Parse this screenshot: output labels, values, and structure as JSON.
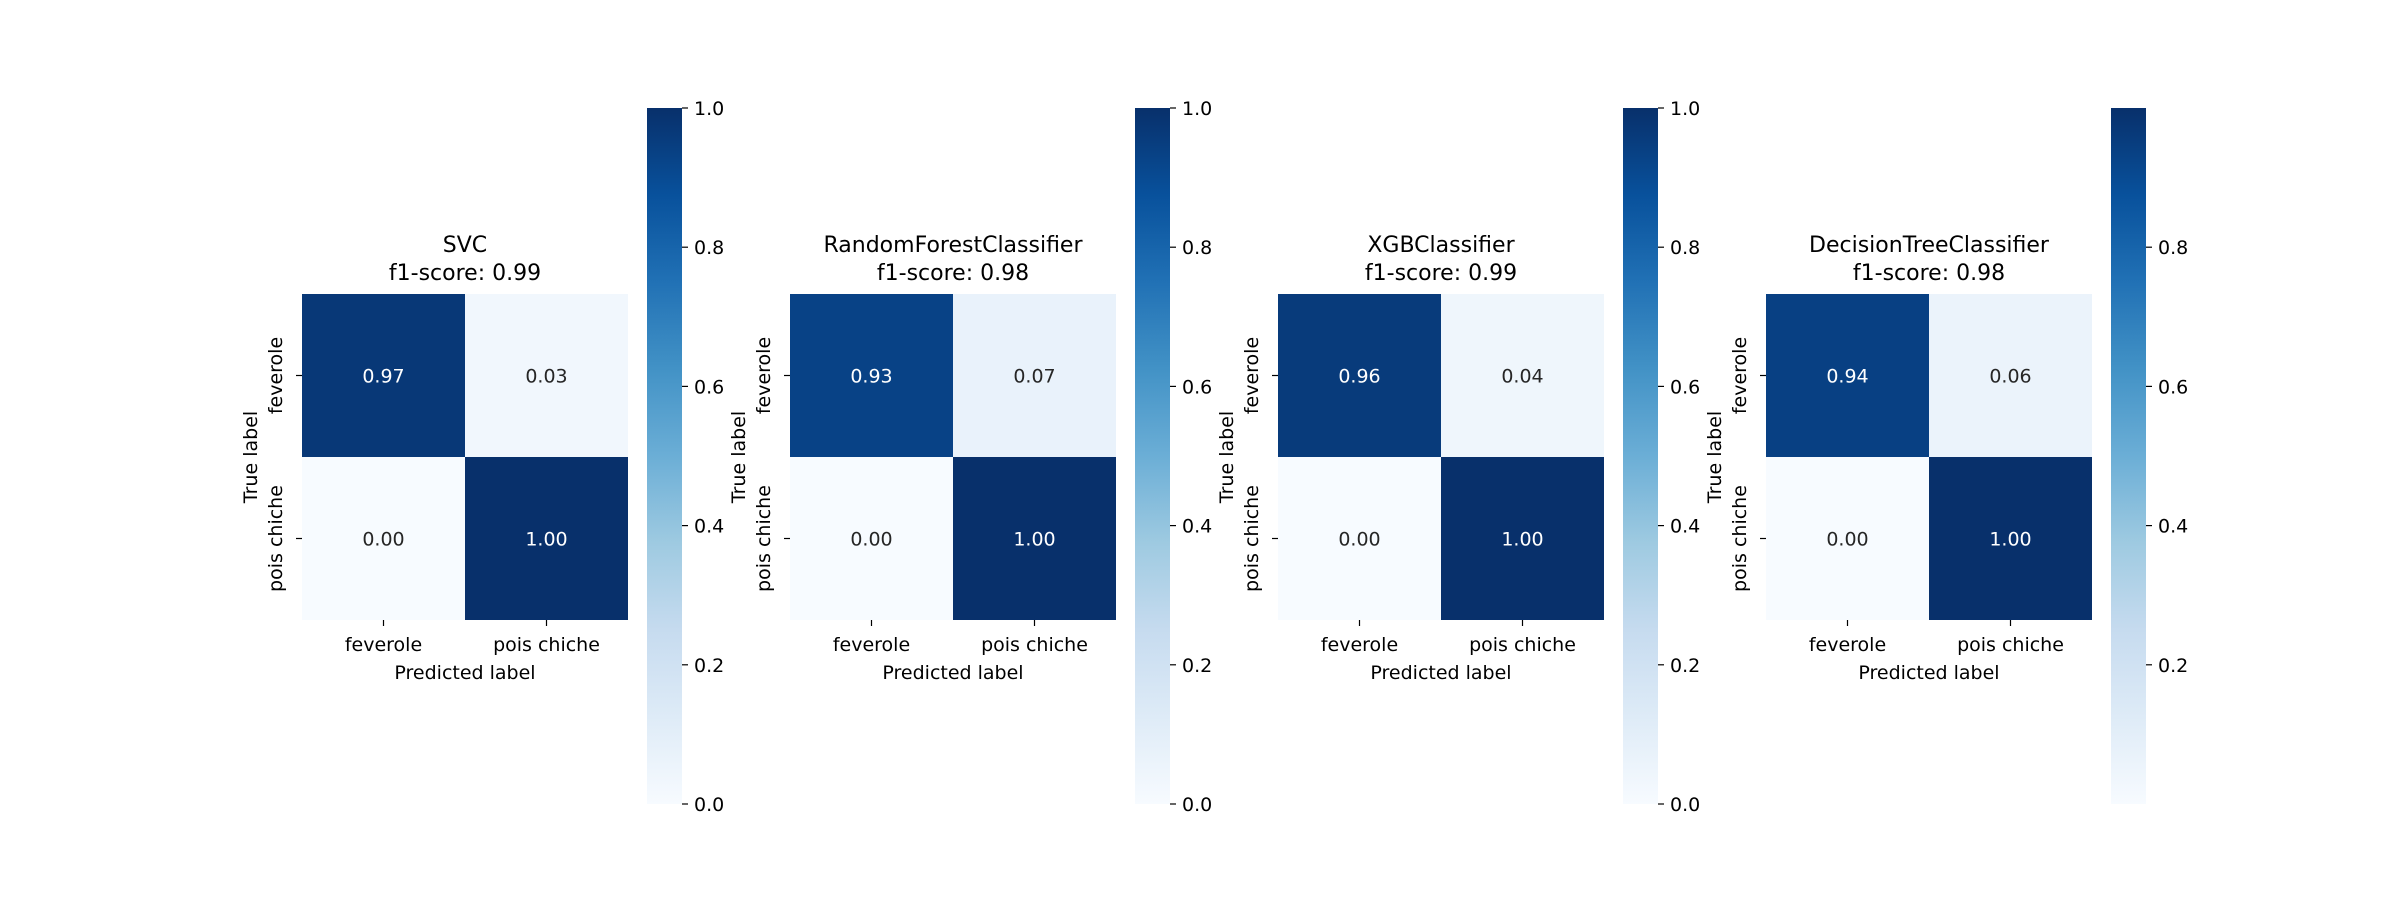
{
  "chart_data": [
    {
      "type": "heatmap",
      "title": "SVC",
      "subtitle": "f1-score: 0.99",
      "xlabel": "Predicted label",
      "ylabel": "True label",
      "x_categories": [
        "feverole",
        "pois chiche"
      ],
      "y_categories": [
        "feverole",
        "pois chiche"
      ],
      "values": [
        [
          0.97,
          0.03
        ],
        [
          0.0,
          1.0
        ]
      ],
      "cell_labels": [
        [
          "0.97",
          "0.03"
        ],
        [
          "0.00",
          "1.00"
        ]
      ],
      "colormap": "Blues",
      "vmin": 0.0,
      "vmax": 1.0,
      "colorbar_ticks": [
        0.0,
        0.2,
        0.4,
        0.6,
        0.8,
        1.0
      ],
      "colorbar_tick_labels": [
        "0.0",
        "0.2",
        "0.4",
        "0.6",
        "0.8",
        "1.0"
      ]
    },
    {
      "type": "heatmap",
      "title": "RandomForestClassifier",
      "subtitle": "f1-score: 0.98",
      "xlabel": "Predicted label",
      "ylabel": "True label",
      "x_categories": [
        "feverole",
        "pois chiche"
      ],
      "y_categories": [
        "feverole",
        "pois chiche"
      ],
      "values": [
        [
          0.93,
          0.07
        ],
        [
          0.0,
          1.0
        ]
      ],
      "cell_labels": [
        [
          "0.93",
          "0.07"
        ],
        [
          "0.00",
          "1.00"
        ]
      ],
      "colormap": "Blues",
      "vmin": 0.0,
      "vmax": 1.0,
      "colorbar_ticks": [
        0.0,
        0.2,
        0.4,
        0.6,
        0.8,
        1.0
      ],
      "colorbar_tick_labels": [
        "0.0",
        "0.2",
        "0.4",
        "0.6",
        "0.8",
        "1.0"
      ]
    },
    {
      "type": "heatmap",
      "title": "XGBClassifier",
      "subtitle": "f1-score: 0.99",
      "xlabel": "Predicted label",
      "ylabel": "True label",
      "x_categories": [
        "feverole",
        "pois chiche"
      ],
      "y_categories": [
        "feverole",
        "pois chiche"
      ],
      "values": [
        [
          0.96,
          0.04
        ],
        [
          0.0,
          1.0
        ]
      ],
      "cell_labels": [
        [
          "0.96",
          "0.04"
        ],
        [
          "0.00",
          "1.00"
        ]
      ],
      "colormap": "Blues",
      "vmin": 0.0,
      "vmax": 1.0,
      "colorbar_ticks": [
        0.0,
        0.2,
        0.4,
        0.6,
        0.8,
        1.0
      ],
      "colorbar_tick_labels": [
        "0.0",
        "0.2",
        "0.4",
        "0.6",
        "0.8",
        "1.0"
      ]
    },
    {
      "type": "heatmap",
      "title": "DecisionTreeClassifier",
      "subtitle": "f1-score: 0.98",
      "xlabel": "Predicted label",
      "ylabel": "True label",
      "x_categories": [
        "feverole",
        "pois chiche"
      ],
      "y_categories": [
        "feverole",
        "pois chiche"
      ],
      "values": [
        [
          0.94,
          0.06
        ],
        [
          0.0,
          1.0
        ]
      ],
      "cell_labels": [
        [
          "0.94",
          "0.06"
        ],
        [
          "0.00",
          "1.00"
        ]
      ],
      "colormap": "Blues",
      "vmin": 0.0,
      "vmax": 1.0,
      "colorbar_ticks": [
        0.2,
        0.4,
        0.6,
        0.8
      ],
      "colorbar_tick_labels": [
        "0.2",
        "0.4",
        "0.6",
        "0.8"
      ]
    }
  ]
}
